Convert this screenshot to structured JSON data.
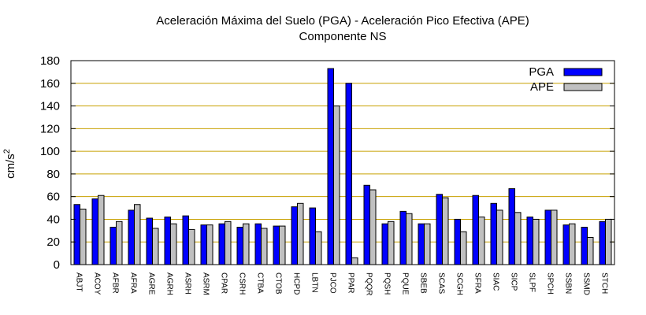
{
  "chart_data": {
    "type": "bar",
    "title": "Aceleración Máxima del Suelo (PGA) -  Aceleración Pico Efectiva (APE)",
    "subtitle": "Componente NS",
    "ylabel": "cm/s",
    "ylabel_superscript": "2",
    "xlabel": "",
    "ylim": [
      0,
      180
    ],
    "yticks": [
      "0",
      "20",
      "40",
      "60",
      "80",
      "100",
      "120",
      "140",
      "160",
      "180"
    ],
    "grid": true,
    "legend_position": "top-right",
    "categories": [
      "ABJT",
      "ACOY",
      "AFBR",
      "AFRA",
      "AGRE",
      "AGRH",
      "ASRH",
      "ASRM",
      "CPAR",
      "CSRH",
      "CTBA",
      "CTOB",
      "HCPD",
      "LBTN",
      "PJCO",
      "PPAR",
      "PQQR",
      "PQSH",
      "PQUE",
      "SBEB",
      "SCAS",
      "SCGH",
      "SFRA",
      "SIAC",
      "SICP",
      "SLPF",
      "SPCH",
      "SSBN",
      "SSMD",
      "STCH"
    ],
    "series": [
      {
        "name": "PGA",
        "color": "#0000ff",
        "values": [
          53,
          58,
          33,
          48,
          41,
          42,
          43,
          35,
          36,
          33,
          36,
          34,
          51,
          50,
          173,
          160,
          70,
          36,
          47,
          36,
          62,
          40,
          61,
          54,
          67,
          42,
          48,
          35,
          33,
          38
        ]
      },
      {
        "name": "APE",
        "color": "#c0c0c0",
        "values": [
          49,
          61,
          38,
          53,
          32,
          36,
          31,
          35,
          38,
          36,
          32,
          34,
          54,
          29,
          140,
          6,
          66,
          38,
          45,
          36,
          59,
          29,
          42,
          48,
          46,
          40,
          48,
          36,
          24,
          40
        ]
      }
    ],
    "colors": {
      "grid": "#c8a000",
      "axis": "#000000"
    }
  }
}
